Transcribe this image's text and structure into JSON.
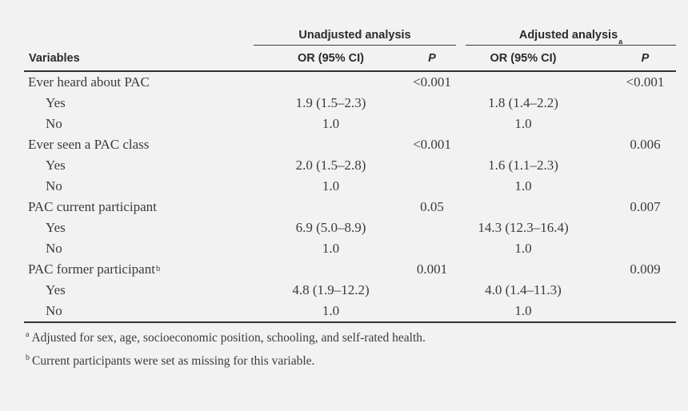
{
  "table": {
    "group_headers": [
      {
        "label": "Unadjusted analysis",
        "sup": ""
      },
      {
        "label": "Adjusted analysis",
        "sup": "a"
      }
    ],
    "col_headers": {
      "variables": "Variables",
      "or1": "OR (95% CI)",
      "p1": "P",
      "or2": "OR (95% CI)",
      "p2": "P"
    },
    "rows": [
      {
        "label": "Ever heard about PAC",
        "sup": "",
        "or1": "",
        "p1": "<0.001",
        "or2": "",
        "p2": "<0.001"
      },
      {
        "label": "Yes",
        "sup": "",
        "or1": "1.9 (1.5–2.3)",
        "p1": "",
        "or2": "1.8 (1.4–2.2)",
        "p2": ""
      },
      {
        "label": "No",
        "sup": "",
        "or1": "1.0",
        "p1": "",
        "or2": "1.0",
        "p2": ""
      },
      {
        "label": "Ever seen a PAC class",
        "sup": "",
        "or1": "",
        "p1": "<0.001",
        "or2": "",
        "p2": "0.006"
      },
      {
        "label": "Yes",
        "sup": "",
        "or1": "2.0 (1.5–2.8)",
        "p1": "",
        "or2": "1.6 (1.1–2.3)",
        "p2": ""
      },
      {
        "label": "No",
        "sup": "",
        "or1": "1.0",
        "p1": "",
        "or2": "1.0",
        "p2": ""
      },
      {
        "label": "PAC current participant",
        "sup": "",
        "or1": "",
        "p1": "0.05",
        "or2": "",
        "p2": "0.007"
      },
      {
        "label": "Yes",
        "sup": "",
        "or1": "6.9 (5.0–8.9)",
        "p1": "",
        "or2": "14.3 (12.3–16.4)",
        "p2": ""
      },
      {
        "label": "No",
        "sup": "",
        "or1": "1.0",
        "p1": "",
        "or2": "1.0",
        "p2": ""
      },
      {
        "label": "PAC former participant",
        "sup": "b",
        "or1": "",
        "p1": "0.001",
        "or2": "",
        "p2": "0.009"
      },
      {
        "label": "Yes",
        "sup": "",
        "or1": "4.8 (1.9–12.2)",
        "p1": "",
        "or2": "4.0 (1.4–11.3)",
        "p2": ""
      },
      {
        "label": "No",
        "sup": "",
        "or1": "1.0",
        "p1": "",
        "or2": "1.0",
        "p2": ""
      }
    ],
    "footnotes": [
      {
        "sup": "a",
        "text": "Adjusted for sex, age, socioeconomic position, schooling, and self-rated health."
      },
      {
        "sup": "b",
        "text": "Current participants were set as missing for this variable."
      }
    ]
  }
}
